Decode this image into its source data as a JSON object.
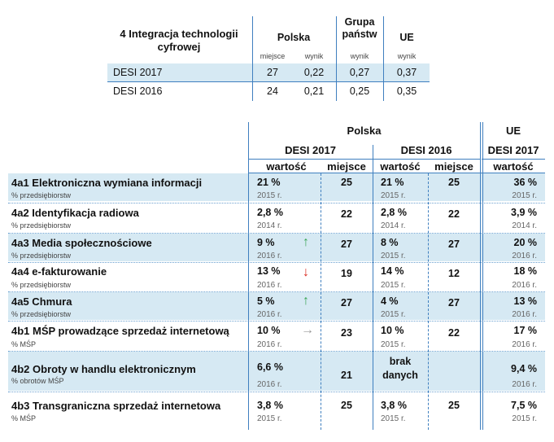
{
  "top_table": {
    "title_line1": "4 Integracja technologii",
    "title_line2": "cyfrowej",
    "col_polska": "Polska",
    "col_grupa_line1": "Grupa",
    "col_grupa_line2": "państw",
    "col_ue": "UE",
    "sub_miejsce": "miejsce",
    "sub_wynik1": "wynik",
    "sub_wynik2": "wynik",
    "sub_wynik3": "wynik",
    "rows": [
      {
        "label": "DESI 2017",
        "miejsce": "27",
        "wynik": "0,22",
        "grupa": "0,27",
        "ue": "0,37"
      },
      {
        "label": "DESI 2016",
        "miejsce": "24",
        "wynik": "0,21",
        "grupa": "0,25",
        "ue": "0,35"
      }
    ]
  },
  "main_table": {
    "header_polska": "Polska",
    "header_ue": "UE",
    "header_desi2017": "DESI 2017",
    "header_desi2016": "DESI 2016",
    "header_ue_desi2017": "DESI 2017",
    "col_wartosc1": "wartość",
    "col_miejsce1": "miejsce",
    "col_wartosc2": "wartość",
    "col_miejsce2": "miejsce",
    "col_wartosc3": "wartość",
    "rows": [
      {
        "title": "4a1 Elektroniczna wymiana informacji",
        "unit": "% przedsiębiorstw",
        "v17": "21 %",
        "y17": "2015 r.",
        "arrow": "",
        "m17": "25",
        "v16": "21 %",
        "y16": "2015 r.",
        "m16": "25",
        "ue": "36 %",
        "yue": "2015 r."
      },
      {
        "title": "4a2 Identyfikacja radiowa",
        "unit": "% przedsiębiorstw",
        "v17": "2,8 %",
        "y17": "2014 r.",
        "arrow": "",
        "m17": "22",
        "v16": "2,8 %",
        "y16": "2014 r.",
        "m16": "22",
        "ue": "3,9 %",
        "yue": "2014 r."
      },
      {
        "title": "4a3 Media społecznościowe",
        "unit": "% przedsiębiorstw",
        "v17": "9 %",
        "y17": "2016 r.",
        "arrow": "↑",
        "m17": "27",
        "v16": "8 %",
        "y16": "2015 r.",
        "m16": "27",
        "ue": "20 %",
        "yue": "2016 r."
      },
      {
        "title": "4a4 e-fakturowanie",
        "unit": "% przedsiębiorstw",
        "v17": "13 %",
        "y17": "2016 r.",
        "arrow": "↓",
        "m17": "19",
        "v16": "14 %",
        "y16": "2015 r.",
        "m16": "12",
        "ue": "18 %",
        "yue": "2016 r."
      },
      {
        "title": "4a5 Chmura",
        "unit": "% przedsiębiorstw",
        "v17": "5 %",
        "y17": "2016 r.",
        "arrow": "↑",
        "m17": "27",
        "v16": "4 %",
        "y16": "2015 r.",
        "m16": "27",
        "ue": "13 %",
        "yue": "2016 r."
      },
      {
        "title": "4b1 MŚP prowadzące sprzedaż internetową",
        "unit": "% MŚP",
        "v17": "10 %",
        "y17": "2016 r.",
        "arrow": "→",
        "m17": "23",
        "v16": "10 %",
        "y16": "2015 r.",
        "m16": "22",
        "ue": "17 %",
        "yue": "2016 r."
      },
      {
        "title": "4b2 Obroty w handlu elektronicznym",
        "unit": "% obrotów MŚP",
        "v17": "6,6 %",
        "y17": "2016 r.",
        "arrow": "",
        "m17": "21",
        "v16_line1": "brak",
        "v16_line2": "danych",
        "m16": "",
        "ue": "9,4 %",
        "yue": "2016 r."
      },
      {
        "title": "4b3 Transgraniczna sprzedaż internetowa",
        "unit": "% MŚP",
        "v17": "3,8 %",
        "y17": "2015 r.",
        "arrow": "",
        "m17": "25",
        "v16": "3,8 %",
        "y16": "2015 r.",
        "m16": "25",
        "ue": "7,5 %",
        "yue": "2015 r."
      }
    ]
  },
  "colors": {
    "shade": "#d6e9f3",
    "rule": "#3f7fbf",
    "up": "#3aa655",
    "down": "#d9261c",
    "neutral": "#999999"
  }
}
